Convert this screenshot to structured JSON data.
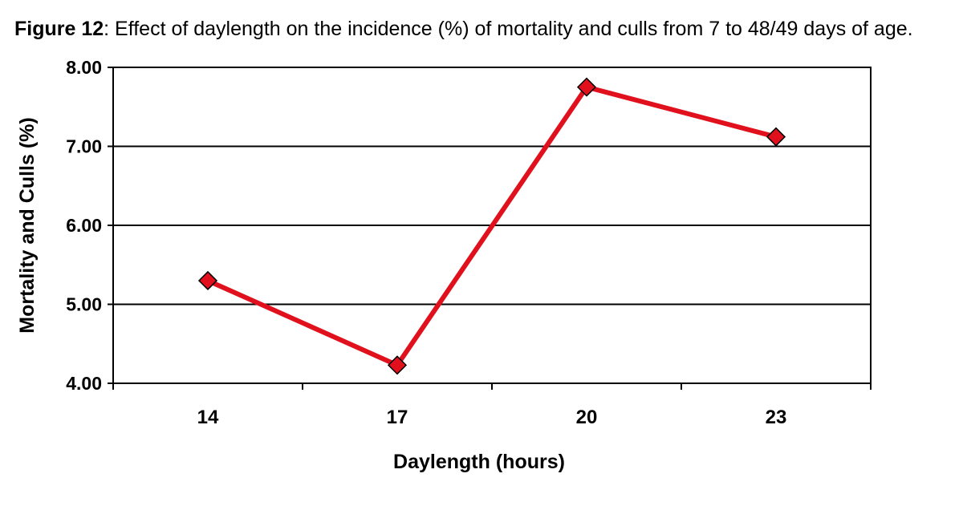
{
  "caption": {
    "label": "Figure 12",
    "text": ":  Effect of daylength on the incidence (%) of mortality and culls from 7 to 48/49 days of age."
  },
  "chart_data": {
    "type": "line",
    "categories": [
      "14",
      "17",
      "20",
      "23"
    ],
    "series": [
      {
        "values": [
          5.3,
          4.23,
          7.75,
          7.12
        ],
        "color": "#e0101c",
        "marker": "diamond"
      }
    ],
    "xlabel": "Daylength (hours)",
    "ylabel": "Mortality and Culls (%)",
    "ylim": [
      4.0,
      8.0
    ],
    "yticks": [
      "4.00",
      "5.00",
      "6.00",
      "7.00",
      "8.00"
    ],
    "grid": true,
    "legend": "none"
  }
}
